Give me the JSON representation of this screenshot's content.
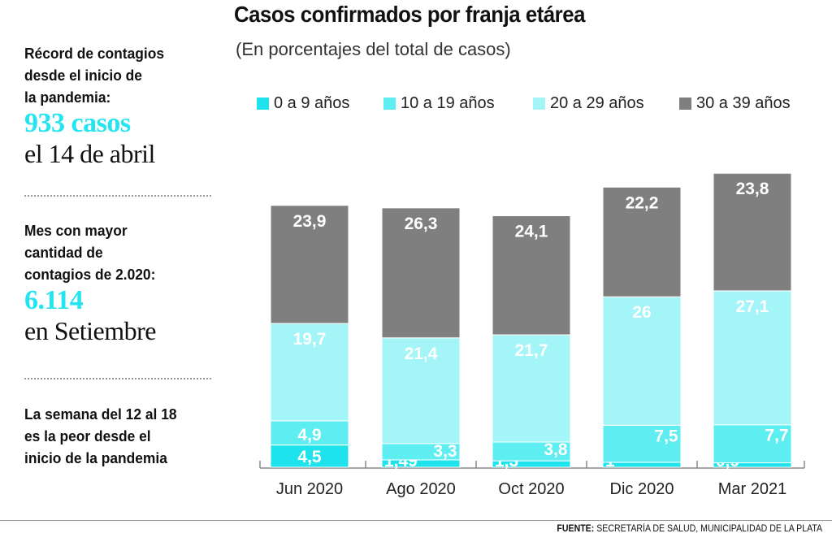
{
  "header": {
    "title": "Casos confirmados por franja etárea",
    "subtitle": "(En porcentajes del total de casos)"
  },
  "sidebar": {
    "record_label_1": "Récord de contagios",
    "record_label_2": "desde el inicio de",
    "record_label_3": "la pandemia:",
    "record_value": "933 casos",
    "record_date": "el 14 de abril",
    "month_label_1": "Mes con mayor",
    "month_label_2": "cantidad de",
    "month_label_3": "contagios de 2.020:",
    "month_value": "6.114",
    "month_name": "en Setiembre",
    "week_label_1": "La semana del 12 al 18",
    "week_label_2": "es la peor desde el",
    "week_label_3": "inicio de la pandemia"
  },
  "source": {
    "prefix": "FUENTE:",
    "text": "SECRETARÍA DE SALUD, MUNICIPALIDAD DE LA PLATA"
  },
  "colors": {
    "s0": "#1ee3ec",
    "s1": "#5eeef2",
    "s2": "#a4f5f7",
    "s3": "#7f7f7f",
    "accent": "#22e5ef"
  },
  "chart_data": {
    "type": "bar",
    "stacked": true,
    "categories": [
      "Jun 2020",
      "Ago 2020",
      "Oct 2020",
      "Dic 2020",
      "Mar 2021"
    ],
    "series": [
      {
        "name": "0 a 9 años",
        "values": [
          4.5,
          1.49,
          1.3,
          1,
          0.9
        ],
        "labels": [
          "4,5",
          "1,49",
          "1,3",
          "1",
          "0,9"
        ]
      },
      {
        "name": "10 a 19 años",
        "values": [
          4.9,
          3.3,
          3.8,
          7.5,
          7.7
        ],
        "labels": [
          "4,9",
          "3,3",
          "3,8",
          "7,5",
          "7,7"
        ]
      },
      {
        "name": "20 a 29 años",
        "values": [
          19.7,
          21.4,
          21.7,
          26,
          27.1
        ],
        "labels": [
          "19,7",
          "21,4",
          "21,7",
          "26",
          "27,1"
        ]
      },
      {
        "name": "30 a 39 años",
        "values": [
          23.9,
          26.3,
          24.1,
          22.2,
          23.8
        ],
        "labels": [
          "23,9",
          "26,3",
          "24,1",
          "22,2",
          "23,8"
        ]
      }
    ],
    "legend_position": "top",
    "grid": false
  }
}
